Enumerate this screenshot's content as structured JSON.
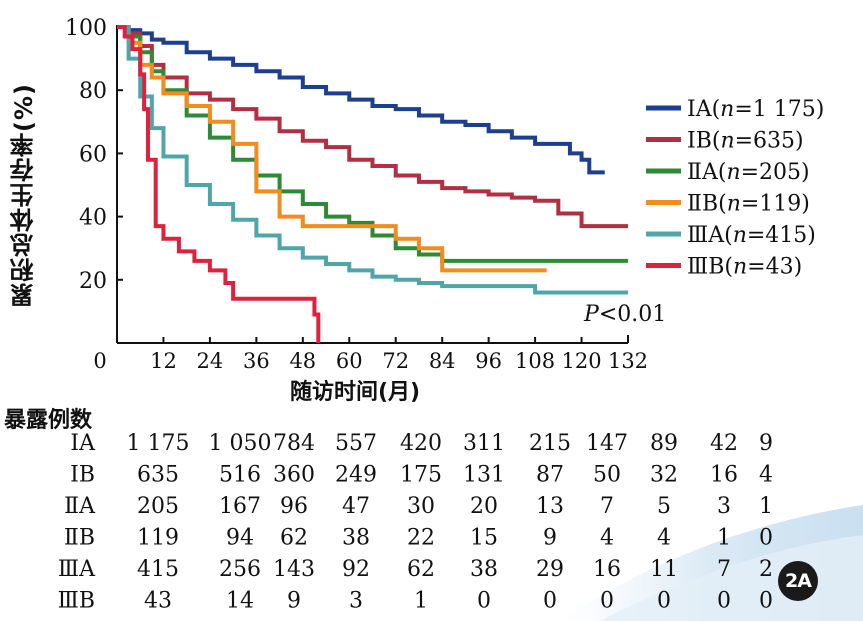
{
  "chart_data": {
    "type": "line",
    "step": true,
    "ylabel": "累积总体生存率(%)",
    "xlabel": "随访时间(月)",
    "xlim": [
      0,
      132
    ],
    "ylim": [
      0,
      100
    ],
    "xticks": [
      0,
      12,
      24,
      36,
      48,
      60,
      72,
      84,
      96,
      108,
      120,
      132
    ],
    "yticks": [
      20,
      40,
      60,
      80,
      100
    ],
    "annotation": "P<0.01",
    "legend_position": "right",
    "series": [
      {
        "name": "ⅠA(n=1 175)",
        "color": "#1c3f8f",
        "x": [
          0,
          3,
          6,
          9,
          12,
          18,
          24,
          30,
          36,
          42,
          48,
          54,
          60,
          66,
          72,
          78,
          84,
          90,
          96,
          102,
          108,
          114,
          117,
          120,
          122,
          126
        ],
        "y": [
          100,
          99,
          98,
          96,
          95,
          92,
          90,
          88,
          86,
          84,
          81,
          79,
          77,
          75,
          74,
          72,
          70,
          69,
          67,
          65,
          63,
          63,
          60,
          58,
          54,
          54
        ]
      },
      {
        "name": "ⅠB(n=635)",
        "color": "#b22e42",
        "x": [
          0,
          3,
          6,
          9,
          12,
          18,
          24,
          30,
          36,
          42,
          48,
          54,
          60,
          66,
          72,
          78,
          84,
          90,
          96,
          102,
          108,
          114,
          120,
          132
        ],
        "y": [
          100,
          98,
          94,
          88,
          84,
          79,
          77,
          74,
          71,
          67,
          64,
          62,
          58,
          56,
          53,
          51,
          49,
          48,
          47,
          46,
          45,
          41,
          37,
          37
        ]
      },
      {
        "name": "ⅡA(n=205)",
        "color": "#2e8a34",
        "x": [
          0,
          3,
          6,
          9,
          12,
          18,
          24,
          30,
          36,
          42,
          48,
          54,
          60,
          66,
          72,
          78,
          84,
          96,
          108,
          120,
          132
        ],
        "y": [
          100,
          97,
          92,
          86,
          80,
          72,
          65,
          58,
          53,
          48,
          44,
          40,
          38,
          34,
          30,
          28,
          26,
          26,
          26,
          26,
          26
        ]
      },
      {
        "name": "ⅡB(n=119)",
        "color": "#f28c1c",
        "x": [
          0,
          3,
          6,
          9,
          12,
          18,
          24,
          30,
          36,
          42,
          48,
          54,
          60,
          66,
          72,
          78,
          84,
          96,
          108,
          111
        ],
        "y": [
          100,
          95,
          88,
          84,
          79,
          75,
          70,
          63,
          48,
          40,
          37,
          37,
          37,
          37,
          33,
          30,
          23,
          23,
          23,
          23
        ]
      },
      {
        "name": "ⅢA(n=415)",
        "color": "#4fa5a8",
        "x": [
          0,
          3,
          6,
          9,
          12,
          18,
          24,
          30,
          36,
          42,
          48,
          54,
          60,
          66,
          72,
          78,
          84,
          96,
          108,
          120,
          132
        ],
        "y": [
          100,
          90,
          78,
          68,
          59,
          50,
          44,
          39,
          34,
          30,
          27,
          25,
          23,
          21,
          20,
          19,
          18,
          18,
          16,
          16,
          16
        ]
      },
      {
        "name": "ⅢB(n=43)",
        "color": "#e0203c",
        "x": [
          0,
          2,
          4,
          6,
          7,
          8,
          10,
          12,
          16,
          20,
          24,
          28,
          30,
          36,
          48,
          48.5,
          50,
          51,
          52
        ],
        "y": [
          100,
          97,
          93,
          85,
          74,
          58,
          37,
          33,
          29,
          26,
          23,
          19,
          14,
          14,
          14,
          14,
          14,
          9,
          0
        ]
      }
    ]
  },
  "risk_table": {
    "title": "暴露例数",
    "rows": [
      {
        "label": "ⅠA",
        "values": [
          "1 175",
          "1 050",
          "784",
          "557",
          "420",
          "311",
          "215",
          "147",
          "89",
          "42",
          "9"
        ]
      },
      {
        "label": "ⅠB",
        "values": [
          "635",
          "516",
          "360",
          "249",
          "175",
          "131",
          "87",
          "50",
          "32",
          "16",
          "4"
        ]
      },
      {
        "label": "ⅡA",
        "values": [
          "205",
          "167",
          "96",
          "47",
          "30",
          "20",
          "13",
          "7",
          "5",
          "3",
          "1"
        ]
      },
      {
        "label": "ⅡB",
        "values": [
          "119",
          "94",
          "62",
          "38",
          "22",
          "15",
          "9",
          "4",
          "4",
          "1",
          "0"
        ]
      },
      {
        "label": "ⅢA",
        "values": [
          "415",
          "256",
          "143",
          "92",
          "62",
          "38",
          "29",
          "16",
          "11",
          "7",
          "2"
        ]
      },
      {
        "label": "ⅢB",
        "values": [
          "43",
          "14",
          "9",
          "3",
          "1",
          "0",
          "0",
          "0",
          "0",
          "0",
          "0"
        ]
      }
    ]
  },
  "figure_badge": "2A"
}
